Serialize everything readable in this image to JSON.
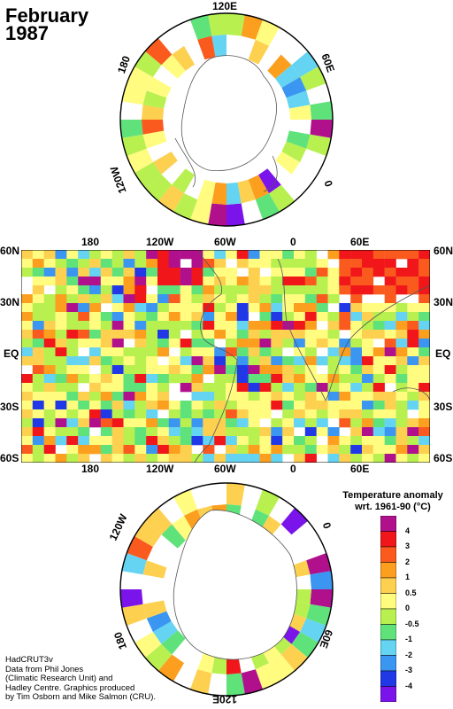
{
  "title": {
    "month": "February",
    "year": "1987"
  },
  "north_polar_labels": {
    "top": "120E",
    "left": "180",
    "right": "60E",
    "lower_left": "120W",
    "lower_right": "0"
  },
  "world_map": {
    "x_labels": [
      "180",
      "120W",
      "60W",
      "0",
      "60E"
    ],
    "y_labels": [
      "60N",
      "30N",
      "EQ",
      "30S",
      "60S"
    ]
  },
  "south_polar_labels": {
    "upper_left": "120W",
    "upper_right": "0",
    "lower_left": "180",
    "lower_right": "60E",
    "bottom": "120E"
  },
  "legend": {
    "title_line1": "Temperature anomaly",
    "title_line2": "wrt. 1961-90  (°C)",
    "levels": [
      {
        "label": "4",
        "color": "#b0108c"
      },
      {
        "label": "3",
        "color": "#f0161a"
      },
      {
        "label": "2",
        "color": "#fa5a1e"
      },
      {
        "label": "1",
        "color": "#fc9e1e"
      },
      {
        "label": "0.5",
        "color": "#fdd050"
      },
      {
        "label": "0",
        "color": "#fffc80"
      },
      {
        "label": "-0.5",
        "color": "#b8f050"
      },
      {
        "label": "-1",
        "color": "#5fe27a"
      },
      {
        "label": "-2",
        "color": "#64d4f2"
      },
      {
        "label": "-3",
        "color": "#3a96f0"
      },
      {
        "label": "-4",
        "color": "#2138e6"
      }
    ],
    "bottom_color": "#7a14ea"
  },
  "credits": [
    "HadCRUT3v",
    "Data from Phil Jones",
    "(Climatic Research Unit) and",
    "Hadley Centre.  Graphics produced",
    "by Tim Osborn and Mike Salmon (CRU)."
  ]
}
